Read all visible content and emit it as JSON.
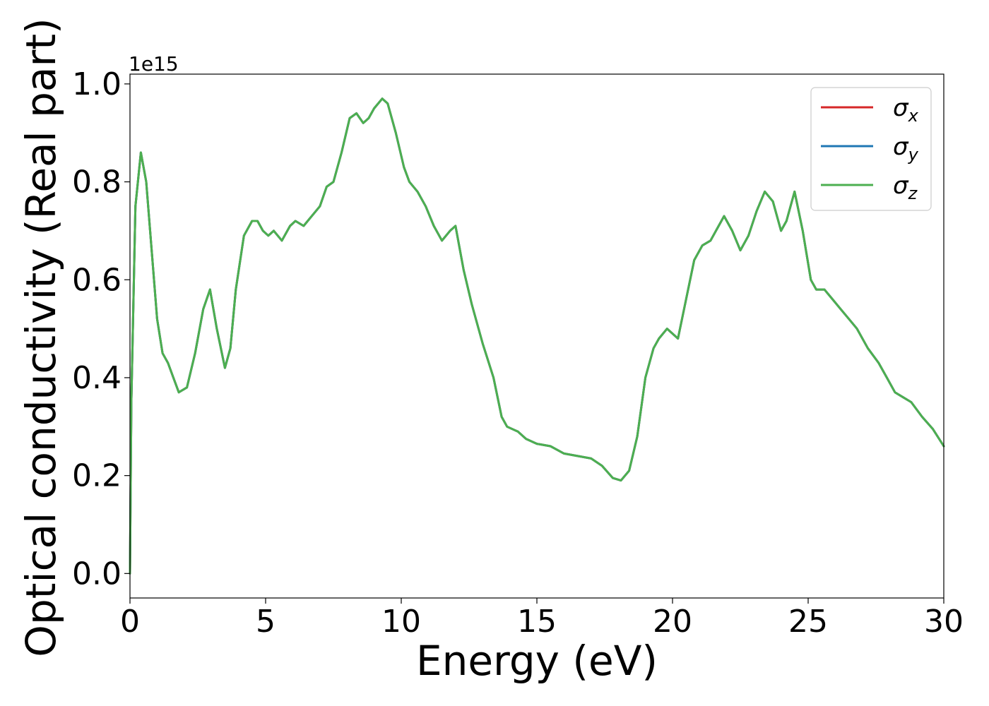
{
  "chart_data": {
    "type": "line",
    "xlabel": "Energy (eV)",
    "ylabel": "Optical conductivity (Real part)",
    "y_offset_label": "1e15",
    "xlim": [
      0,
      30
    ],
    "ylim": [
      -0.05,
      1.02
    ],
    "xticks": [
      0,
      5,
      10,
      15,
      20,
      25,
      30
    ],
    "xtick_labels": [
      "0",
      "5",
      "10",
      "15",
      "20",
      "25",
      "30"
    ],
    "yticks": [
      0.0,
      0.2,
      0.4,
      0.6,
      0.8,
      1.0
    ],
    "ytick_labels": [
      "0.0",
      "0.2",
      "0.4",
      "0.6",
      "0.8",
      "1.0"
    ],
    "grid": false,
    "legend_position": "top-right",
    "x": [
      0,
      0.05,
      0.2,
      0.4,
      0.6,
      0.8,
      1.0,
      1.2,
      1.4,
      1.6,
      1.8,
      2.1,
      2.4,
      2.7,
      2.95,
      3.2,
      3.5,
      3.7,
      3.9,
      4.2,
      4.5,
      4.7,
      4.9,
      5.1,
      5.3,
      5.6,
      5.9,
      6.1,
      6.4,
      6.7,
      7.0,
      7.25,
      7.5,
      7.8,
      8.1,
      8.35,
      8.6,
      8.8,
      9.0,
      9.3,
      9.5,
      9.8,
      10.1,
      10.3,
      10.6,
      10.9,
      11.2,
      11.5,
      11.8,
      12.0,
      12.3,
      12.6,
      13.0,
      13.4,
      13.7,
      13.9,
      14.1,
      14.3,
      14.6,
      15.0,
      15.5,
      16.0,
      16.5,
      17.0,
      17.4,
      17.8,
      18.1,
      18.4,
      18.7,
      19.0,
      19.3,
      19.5,
      19.8,
      20.2,
      20.5,
      20.8,
      21.1,
      21.4,
      21.7,
      21.9,
      22.2,
      22.5,
      22.8,
      23.1,
      23.4,
      23.7,
      24.0,
      24.2,
      24.5,
      24.8,
      25.1,
      25.3,
      25.6,
      25.9,
      26.2,
      26.5,
      26.8,
      27.2,
      27.6,
      27.9,
      28.2,
      28.5,
      28.8,
      29.2,
      29.6,
      30.0
    ],
    "series": [
      {
        "name": "σx",
        "color": "#d62728",
        "values": [
          0.0,
          0.35,
          0.75,
          0.86,
          0.8,
          0.66,
          0.52,
          0.45,
          0.43,
          0.4,
          0.37,
          0.38,
          0.45,
          0.54,
          0.58,
          0.5,
          0.42,
          0.46,
          0.58,
          0.69,
          0.72,
          0.72,
          0.7,
          0.69,
          0.7,
          0.68,
          0.71,
          0.72,
          0.71,
          0.73,
          0.75,
          0.79,
          0.8,
          0.86,
          0.93,
          0.94,
          0.92,
          0.93,
          0.95,
          0.97,
          0.96,
          0.9,
          0.83,
          0.8,
          0.78,
          0.75,
          0.71,
          0.68,
          0.7,
          0.71,
          0.62,
          0.55,
          0.47,
          0.4,
          0.32,
          0.3,
          0.295,
          0.29,
          0.275,
          0.265,
          0.26,
          0.245,
          0.24,
          0.235,
          0.22,
          0.195,
          0.19,
          0.21,
          0.28,
          0.4,
          0.46,
          0.48,
          0.5,
          0.48,
          0.56,
          0.64,
          0.67,
          0.68,
          0.71,
          0.73,
          0.7,
          0.66,
          0.69,
          0.74,
          0.78,
          0.76,
          0.7,
          0.72,
          0.78,
          0.7,
          0.6,
          0.58,
          0.58,
          0.56,
          0.54,
          0.52,
          0.5,
          0.46,
          0.43,
          0.4,
          0.37,
          0.36,
          0.35,
          0.32,
          0.295,
          0.26
        ]
      },
      {
        "name": "σy",
        "color": "#1f77b4",
        "values": [
          0.0,
          0.35,
          0.75,
          0.86,
          0.8,
          0.66,
          0.52,
          0.45,
          0.43,
          0.4,
          0.37,
          0.38,
          0.45,
          0.54,
          0.58,
          0.5,
          0.42,
          0.46,
          0.58,
          0.69,
          0.72,
          0.72,
          0.7,
          0.69,
          0.7,
          0.68,
          0.71,
          0.72,
          0.71,
          0.73,
          0.75,
          0.79,
          0.8,
          0.86,
          0.93,
          0.94,
          0.92,
          0.93,
          0.95,
          0.97,
          0.96,
          0.9,
          0.83,
          0.8,
          0.78,
          0.75,
          0.71,
          0.68,
          0.7,
          0.71,
          0.62,
          0.55,
          0.47,
          0.4,
          0.32,
          0.3,
          0.295,
          0.29,
          0.275,
          0.265,
          0.26,
          0.245,
          0.24,
          0.235,
          0.22,
          0.195,
          0.19,
          0.21,
          0.28,
          0.4,
          0.46,
          0.48,
          0.5,
          0.48,
          0.56,
          0.64,
          0.67,
          0.68,
          0.71,
          0.73,
          0.7,
          0.66,
          0.69,
          0.74,
          0.78,
          0.76,
          0.7,
          0.72,
          0.78,
          0.7,
          0.6,
          0.58,
          0.58,
          0.56,
          0.54,
          0.52,
          0.5,
          0.46,
          0.43,
          0.4,
          0.37,
          0.36,
          0.35,
          0.32,
          0.295,
          0.26
        ]
      },
      {
        "name": "σz",
        "color": "#4caf50",
        "values": [
          0.0,
          0.35,
          0.75,
          0.86,
          0.8,
          0.66,
          0.52,
          0.45,
          0.43,
          0.4,
          0.37,
          0.38,
          0.45,
          0.54,
          0.58,
          0.5,
          0.42,
          0.46,
          0.58,
          0.69,
          0.72,
          0.72,
          0.7,
          0.69,
          0.7,
          0.68,
          0.71,
          0.72,
          0.71,
          0.73,
          0.75,
          0.79,
          0.8,
          0.86,
          0.93,
          0.94,
          0.92,
          0.93,
          0.95,
          0.97,
          0.96,
          0.9,
          0.83,
          0.8,
          0.78,
          0.75,
          0.71,
          0.68,
          0.7,
          0.71,
          0.62,
          0.55,
          0.47,
          0.4,
          0.32,
          0.3,
          0.295,
          0.29,
          0.275,
          0.265,
          0.26,
          0.245,
          0.24,
          0.235,
          0.22,
          0.195,
          0.19,
          0.21,
          0.28,
          0.4,
          0.46,
          0.48,
          0.5,
          0.48,
          0.56,
          0.64,
          0.67,
          0.68,
          0.71,
          0.73,
          0.7,
          0.66,
          0.69,
          0.74,
          0.78,
          0.76,
          0.7,
          0.72,
          0.78,
          0.7,
          0.6,
          0.58,
          0.58,
          0.56,
          0.54,
          0.52,
          0.5,
          0.46,
          0.43,
          0.4,
          0.37,
          0.36,
          0.35,
          0.32,
          0.295,
          0.26
        ]
      }
    ],
    "legend": [
      {
        "symbol": "σ",
        "sub": "x"
      },
      {
        "symbol": "σ",
        "sub": "y"
      },
      {
        "symbol": "σ",
        "sub": "z"
      }
    ]
  }
}
